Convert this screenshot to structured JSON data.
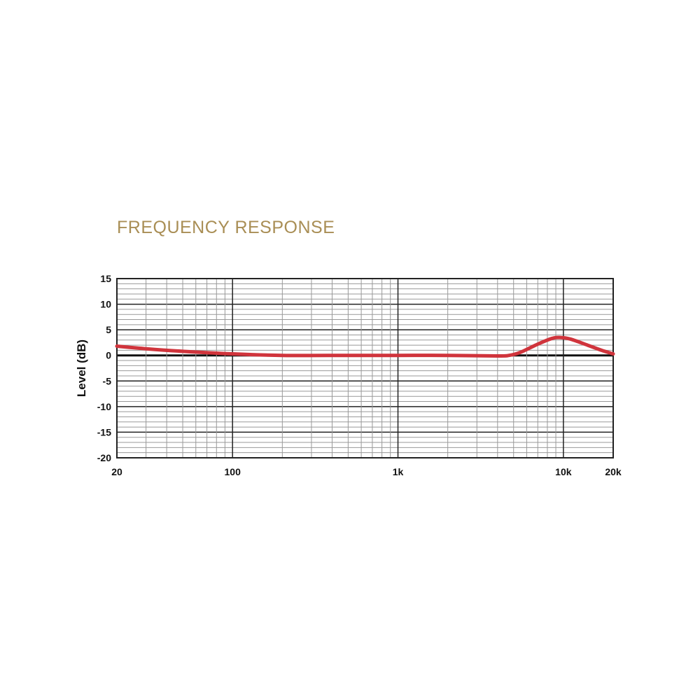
{
  "chart_data": {
    "type": "line",
    "title": "FREQUENCY RESPONSE",
    "xlabel": "",
    "ylabel": "Level (dB)",
    "x_scale": "log",
    "xlim": [
      20,
      20000
    ],
    "ylim": [
      -20,
      15
    ],
    "x_ticks": [
      {
        "v": 20,
        "label": "20"
      },
      {
        "v": 100,
        "label": "100"
      },
      {
        "v": 1000,
        "label": "1k"
      },
      {
        "v": 10000,
        "label": "10k"
      },
      {
        "v": 20000,
        "label": "20k"
      }
    ],
    "y_ticks": [
      15,
      10,
      5,
      0,
      -5,
      -10,
      -15,
      -20
    ],
    "grid": true,
    "series": [
      {
        "color": "#d0343c",
        "points": [
          [
            20,
            1.8
          ],
          [
            30,
            1.3
          ],
          [
            50,
            0.8
          ],
          [
            100,
            0.3
          ],
          [
            200,
            0
          ],
          [
            500,
            0
          ],
          [
            1000,
            0
          ],
          [
            2000,
            0
          ],
          [
            4000,
            -0.1
          ],
          [
            4700,
            0
          ],
          [
            5500,
            0.6
          ],
          [
            7000,
            2.2
          ],
          [
            8500,
            3.3
          ],
          [
            9500,
            3.5
          ],
          [
            11000,
            3.2
          ],
          [
            14000,
            2.0
          ],
          [
            17000,
            1.0
          ],
          [
            20000,
            0.3
          ]
        ]
      }
    ],
    "colors": {
      "title": "#a98e55",
      "curve": "#d0343c"
    }
  }
}
